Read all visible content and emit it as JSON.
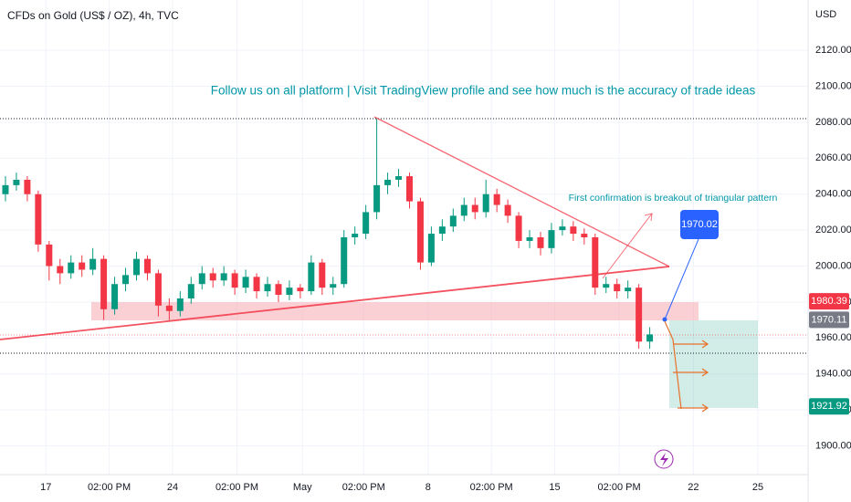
{
  "header": {
    "symbol": "CFDs on Gold (US$ / OZ), 4h, TVC",
    "currency": "USD"
  },
  "chart_data": {
    "type": "candlestick",
    "open": [
      2040,
      2045,
      2048,
      2040,
      2012,
      2000,
      1996,
      2002,
      1998,
      2004,
      1976,
      1990,
      1995,
      2004,
      1996,
      1978,
      1975,
      1982,
      1990,
      1996,
      1992,
      1996,
      1988,
      1994,
      1986,
      1990,
      1984,
      1988,
      1986,
      2002,
      1988,
      1990,
      2016,
      2018,
      2030,
      2045,
      2048,
      2050,
      2036,
      2002,
      2018,
      2022,
      2028,
      2034,
      2030,
      2040,
      2034,
      2028,
      2014,
      2016,
      2010,
      2020,
      2022,
      2018,
      2016,
      1988,
      1990,
      1986,
      1988,
      1958
    ],
    "high": [
      2050,
      2052,
      2050,
      2042,
      2014,
      2004,
      2006,
      2006,
      2010,
      2006,
      1994,
      1999,
      2008,
      2006,
      1998,
      1982,
      1986,
      1994,
      2000,
      1999,
      2000,
      1998,
      1998,
      1996,
      1994,
      1992,
      1992,
      1990,
      2006,
      2004,
      1994,
      2020,
      2022,
      2034,
      2082,
      2052,
      2054,
      2052,
      2038,
      2022,
      2026,
      2032,
      2038,
      2038,
      2048,
      2043,
      2037,
      2030,
      2020,
      2019,
      2024,
      2026,
      2025,
      2021,
      2018,
      1994,
      1993,
      1992,
      1990,
      1966
    ],
    "low": [
      2036,
      2042,
      2036,
      2008,
      1992,
      1990,
      1993,
      1994,
      1995,
      1970,
      1973,
      1986,
      1992,
      1992,
      1972,
      1970,
      1972,
      1979,
      1987,
      1988,
      1989,
      1984,
      1985,
      1982,
      1983,
      1980,
      1981,
      1982,
      1984,
      1984,
      1984,
      1988,
      2012,
      2015,
      2026,
      2040,
      2044,
      2032,
      1998,
      2000,
      2014,
      2019,
      2025,
      2026,
      2027,
      2030,
      2024,
      2010,
      2010,
      2006,
      2007,
      2017,
      2014,
      2012,
      1984,
      1985,
      1982,
      1982,
      1954,
      1954
    ],
    "close": [
      2045,
      2048,
      2040,
      2012,
      2000,
      1996,
      2002,
      1998,
      2004,
      1976,
      1990,
      1995,
      2004,
      1996,
      1978,
      1975,
      1982,
      1990,
      1996,
      1992,
      1996,
      1988,
      1994,
      1986,
      1990,
      1984,
      1988,
      1986,
      2002,
      1988,
      1990,
      2016,
      2018,
      2030,
      2045,
      2048,
      2050,
      2036,
      2002,
      2018,
      2022,
      2028,
      2034,
      2030,
      2040,
      2034,
      2028,
      2014,
      2016,
      2010,
      2020,
      2022,
      2018,
      2016,
      1988,
      1990,
      1986,
      1988,
      1958,
      1962
    ],
    "up_color": "#089981",
    "down_color": "#f23645",
    "xlim": [
      0,
      74
    ],
    "xticks": [
      {
        "value": 4.2,
        "label": "17"
      },
      {
        "value": 10,
        "label": "02:00 PM"
      },
      {
        "value": 15.8,
        "label": "24"
      },
      {
        "value": 21.7,
        "label": "02:00 PM"
      },
      {
        "value": 27.7,
        "label": "May"
      },
      {
        "value": 33.3,
        "label": "02:00 PM"
      },
      {
        "value": 39.2,
        "label": "8"
      },
      {
        "value": 45,
        "label": "02:00 PM"
      },
      {
        "value": 50.8,
        "label": "15"
      },
      {
        "value": 56.7,
        "label": "02:00 PM"
      },
      {
        "value": 63.5,
        "label": "22"
      },
      {
        "value": 69.4,
        "label": "25"
      }
    ],
    "ylim": [
      1884,
      2148
    ],
    "yticks": [
      {
        "value": 1900,
        "label": "1900.00"
      },
      {
        "value": 1920,
        "label": "1920.00"
      },
      {
        "value": 1940,
        "label": "1940.00"
      },
      {
        "value": 1960,
        "label": "1960.00"
      },
      {
        "value": 1980,
        "label": "1980.00"
      },
      {
        "value": 2000,
        "label": "2000.00"
      },
      {
        "value": 2020,
        "label": "2020.00"
      },
      {
        "value": 2040,
        "label": "2040.00"
      },
      {
        "value": 2060,
        "label": "2060.00"
      },
      {
        "value": 2080,
        "label": "2080.00"
      },
      {
        "value": 2100,
        "label": "2100.00"
      },
      {
        "value": 2120,
        "label": "2120.00"
      }
    ],
    "grid": true,
    "price_tags": [
      {
        "value": 1980.39,
        "color": "#f23645"
      },
      {
        "value": 1970.11,
        "color": "#787b86"
      },
      {
        "value": 1921.92,
        "color": "#089981"
      }
    ],
    "annotations": [
      "Follow us on all platform | Visit TradingView profile and see how much is the accuracy of trade ideas",
      "First confirmation is breakout of triangular pattern"
    ],
    "callout": 1970.02
  }
}
